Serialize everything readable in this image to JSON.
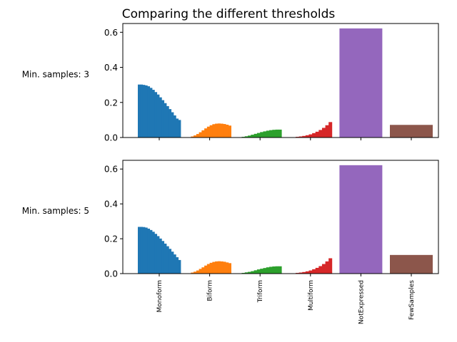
{
  "chart_data": {
    "type": "bar",
    "title": "Comparing the different thresholds",
    "categories": [
      "Monoform",
      "Biform",
      "Triform",
      "Multiform",
      "NotExpressed",
      "FewSamples"
    ],
    "colors": [
      "#1f77b4",
      "#ff7f0e",
      "#2ca02c",
      "#d62728",
      "#9467bd",
      "#8c564b"
    ],
    "ylim": [
      0,
      0.65
    ],
    "yticks": [
      "0.0",
      "0.2",
      "0.4",
      "0.6"
    ],
    "panels": [
      {
        "label": "Min. samples: 3",
        "series": [
          {
            "name": "Monoform",
            "values": [
              0.302,
              0.302,
              0.3,
              0.297,
              0.292,
              0.283,
              0.272,
              0.259,
              0.245,
              0.229,
              0.213,
              0.196,
              0.179,
              0.162,
              0.144,
              0.126,
              0.108,
              0.1
            ]
          },
          {
            "name": "Biform",
            "values": [
              0.002,
              0.006,
              0.012,
              0.02,
              0.03,
              0.041,
              0.052,
              0.062,
              0.07,
              0.076,
              0.079,
              0.08,
              0.079,
              0.077,
              0.073,
              0.068
            ]
          },
          {
            "name": "Triform",
            "values": [
              0.002,
              0.004,
              0.007,
              0.011,
              0.016,
              0.021,
              0.026,
              0.031,
              0.035,
              0.039,
              0.042,
              0.044,
              0.045,
              0.045
            ]
          },
          {
            "name": "Multiform",
            "values": [
              0.001,
              0.002,
              0.004,
              0.006,
              0.009,
              0.013,
              0.018,
              0.025,
              0.033,
              0.043,
              0.055,
              0.07,
              0.088
            ]
          },
          {
            "name": "NotExpressed",
            "values": [
              0.622
            ]
          },
          {
            "name": "FewSamples",
            "values": [
              0.072
            ]
          }
        ]
      },
      {
        "label": "Min. samples: 5",
        "series": [
          {
            "name": "Monoform",
            "values": [
              0.268,
              0.268,
              0.267,
              0.264,
              0.258,
              0.25,
              0.24,
              0.228,
              0.215,
              0.201,
              0.187,
              0.172,
              0.157,
              0.142,
              0.126,
              0.11,
              0.094,
              0.078
            ]
          },
          {
            "name": "Biform",
            "values": [
              0.002,
              0.006,
              0.011,
              0.018,
              0.027,
              0.036,
              0.046,
              0.055,
              0.062,
              0.067,
              0.07,
              0.071,
              0.07,
              0.068,
              0.064,
              0.06
            ]
          },
          {
            "name": "Triform",
            "values": [
              0.002,
              0.004,
              0.007,
              0.01,
              0.014,
              0.019,
              0.024,
              0.028,
              0.032,
              0.036,
              0.039,
              0.041,
              0.042,
              0.042
            ]
          },
          {
            "name": "Multiform",
            "values": [
              0.001,
              0.002,
              0.004,
              0.006,
              0.009,
              0.013,
              0.018,
              0.025,
              0.033,
              0.043,
              0.055,
              0.07,
              0.088
            ]
          },
          {
            "name": "NotExpressed",
            "values": [
              0.622
            ]
          },
          {
            "name": "FewSamples",
            "values": [
              0.107
            ]
          }
        ]
      }
    ]
  }
}
